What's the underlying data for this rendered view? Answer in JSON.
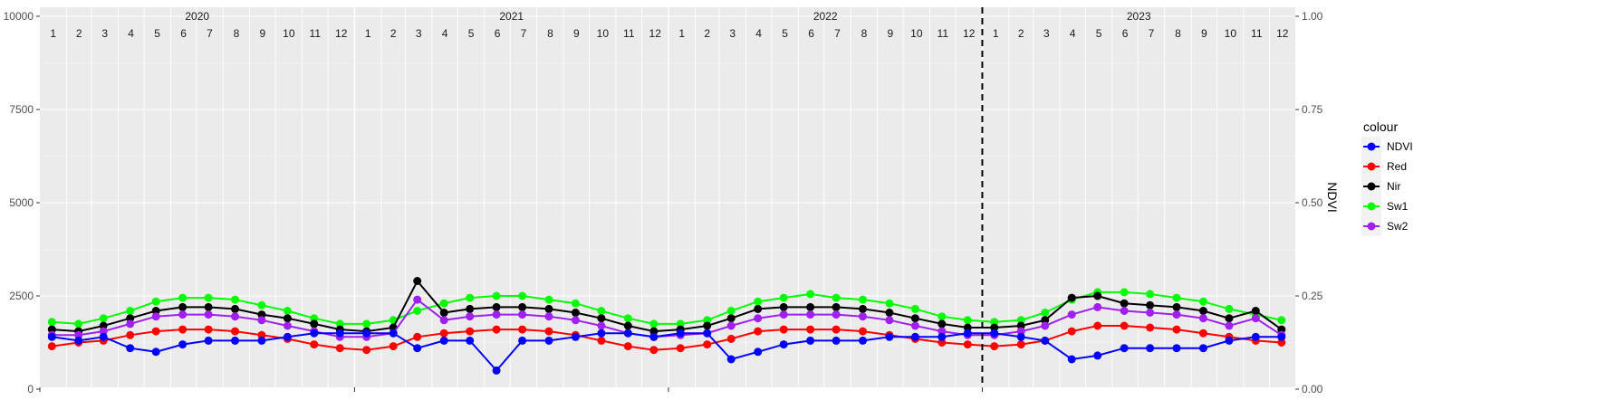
{
  "chart_data": {
    "type": "line",
    "xlabel": "",
    "ylabel_left": "",
    "ylabel_right": "NDVI",
    "ylim_left": [
      0,
      10000
    ],
    "ylim_right": [
      0.0,
      1.0
    ],
    "y_ticks_left": [
      "0",
      "2500",
      "5000",
      "7500",
      "10000"
    ],
    "y_ticks_right": [
      "0.00",
      "0.25",
      "0.50",
      "0.75",
      "1.00"
    ],
    "x_range": [
      "2020-01-01",
      "2023-12-31"
    ],
    "years": [
      "2020",
      "2021",
      "2022",
      "2023"
    ],
    "months": [
      "1",
      "2",
      "3",
      "4",
      "5",
      "6",
      "7",
      "8",
      "9",
      "10",
      "11",
      "12"
    ],
    "dashed_vline_date": "2023-01-01",
    "grid": true,
    "legend_title": "colour",
    "legend_position": "right",
    "colors": {
      "NDVI": "#0000ff",
      "Red": "#ff0000",
      "Nir": "#000000",
      "Sw1": "#00ff00",
      "Sw2": "#a020f0"
    },
    "draw_order": [
      "Sw1",
      "Nir",
      "Sw2",
      "Red",
      "NDVI"
    ],
    "series": [
      {
        "name": "NDVI",
        "axis": "right",
        "dates": [
          "2020-01-15",
          "2020-02-15",
          "2020-03-15",
          "2020-04-15",
          "2020-05-15",
          "2020-06-15",
          "2020-07-15",
          "2020-08-15",
          "2020-09-15",
          "2020-10-15",
          "2020-11-15",
          "2020-12-15",
          "2021-01-15",
          "2021-02-15",
          "2021-03-15",
          "2021-04-15",
          "2021-05-15",
          "2021-06-15",
          "2021-07-15",
          "2021-08-15",
          "2021-09-15",
          "2021-10-15",
          "2021-11-15",
          "2021-12-15",
          "2022-01-15",
          "2022-02-15",
          "2022-03-15",
          "2022-04-15",
          "2022-05-15",
          "2022-06-15",
          "2022-07-15",
          "2022-08-15",
          "2022-09-15",
          "2022-10-15",
          "2022-11-15",
          "2022-12-15",
          "2023-01-15",
          "2023-02-15",
          "2023-03-15",
          "2023-04-15",
          "2023-05-15",
          "2023-06-15",
          "2023-07-15",
          "2023-08-15",
          "2023-09-15",
          "2023-10-15",
          "2023-11-15",
          "2023-12-15"
        ],
        "values": [
          0.14,
          0.13,
          0.14,
          0.11,
          0.1,
          0.12,
          0.13,
          0.13,
          0.13,
          0.14,
          0.15,
          0.15,
          0.15,
          0.15,
          0.11,
          0.13,
          0.13,
          0.05,
          0.13,
          0.13,
          0.14,
          0.15,
          0.15,
          0.14,
          0.15,
          0.15,
          0.08,
          0.1,
          0.12,
          0.13,
          0.13,
          0.13,
          0.14,
          0.14,
          0.14,
          0.15,
          0.15,
          0.14,
          0.13,
          0.08,
          0.09,
          0.11,
          0.11,
          0.11,
          0.11,
          0.13,
          0.14,
          0.14
        ]
      },
      {
        "name": "Red",
        "axis": "left",
        "dates": [
          "2020-01-15",
          "2020-02-15",
          "2020-03-15",
          "2020-04-15",
          "2020-05-15",
          "2020-06-15",
          "2020-07-15",
          "2020-08-15",
          "2020-09-15",
          "2020-10-15",
          "2020-11-15",
          "2020-12-15",
          "2021-01-15",
          "2021-02-15",
          "2021-03-15",
          "2021-04-15",
          "2021-05-15",
          "2021-06-15",
          "2021-07-15",
          "2021-08-15",
          "2021-09-15",
          "2021-10-15",
          "2021-11-15",
          "2021-12-15",
          "2022-01-15",
          "2022-02-15",
          "2022-03-15",
          "2022-04-15",
          "2022-05-15",
          "2022-06-15",
          "2022-07-15",
          "2022-08-15",
          "2022-09-15",
          "2022-10-15",
          "2022-11-15",
          "2022-12-15",
          "2023-01-15",
          "2023-02-15",
          "2023-03-15",
          "2023-04-15",
          "2023-05-15",
          "2023-06-15",
          "2023-07-15",
          "2023-08-15",
          "2023-09-15",
          "2023-10-15",
          "2023-11-15",
          "2023-12-15"
        ],
        "values": [
          1150,
          1250,
          1300,
          1450,
          1550,
          1600,
          1600,
          1550,
          1450,
          1350,
          1200,
          1100,
          1050,
          1150,
          1400,
          1500,
          1550,
          1600,
          1600,
          1550,
          1450,
          1300,
          1150,
          1050,
          1100,
          1200,
          1350,
          1550,
          1600,
          1600,
          1600,
          1550,
          1450,
          1350,
          1250,
          1200,
          1150,
          1200,
          1300,
          1550,
          1700,
          1700,
          1650,
          1600,
          1500,
          1400,
          1300,
          1250
        ]
      },
      {
        "name": "Nir",
        "axis": "left",
        "dates": [
          "2020-01-15",
          "2020-02-15",
          "2020-03-15",
          "2020-04-15",
          "2020-05-15",
          "2020-06-15",
          "2020-07-15",
          "2020-08-15",
          "2020-09-15",
          "2020-10-15",
          "2020-11-15",
          "2020-12-15",
          "2021-01-15",
          "2021-02-15",
          "2021-03-15",
          "2021-04-15",
          "2021-05-15",
          "2021-06-15",
          "2021-07-15",
          "2021-08-15",
          "2021-09-15",
          "2021-10-15",
          "2021-11-15",
          "2021-12-15",
          "2022-01-15",
          "2022-02-15",
          "2022-03-15",
          "2022-04-15",
          "2022-05-15",
          "2022-06-15",
          "2022-07-15",
          "2022-08-15",
          "2022-09-15",
          "2022-10-15",
          "2022-11-15",
          "2022-12-15",
          "2023-01-15",
          "2023-02-15",
          "2023-03-15",
          "2023-04-15",
          "2023-05-15",
          "2023-06-15",
          "2023-07-15",
          "2023-08-15",
          "2023-09-15",
          "2023-10-15",
          "2023-11-15",
          "2023-12-15"
        ],
        "values": [
          1600,
          1550,
          1700,
          1900,
          2100,
          2200,
          2200,
          2150,
          2000,
          1900,
          1750,
          1600,
          1550,
          1650,
          2900,
          2050,
          2150,
          2200,
          2200,
          2150,
          2050,
          1900,
          1700,
          1550,
          1600,
          1700,
          1900,
          2150,
          2200,
          2200,
          2200,
          2150,
          2050,
          1900,
          1750,
          1650,
          1650,
          1700,
          1850,
          2450,
          2500,
          2300,
          2250,
          2200,
          2100,
          1900,
          2100,
          1600
        ]
      },
      {
        "name": "Sw1",
        "axis": "left",
        "dates": [
          "2020-01-15",
          "2020-02-15",
          "2020-03-15",
          "2020-04-15",
          "2020-05-15",
          "2020-06-15",
          "2020-07-15",
          "2020-08-15",
          "2020-09-15",
          "2020-10-15",
          "2020-11-15",
          "2020-12-15",
          "2021-01-15",
          "2021-02-15",
          "2021-03-15",
          "2021-04-15",
          "2021-05-15",
          "2021-06-15",
          "2021-07-15",
          "2021-08-15",
          "2021-09-15",
          "2021-10-15",
          "2021-11-15",
          "2021-12-15",
          "2022-01-15",
          "2022-02-15",
          "2022-03-15",
          "2022-04-15",
          "2022-05-15",
          "2022-06-15",
          "2022-07-15",
          "2022-08-15",
          "2022-09-15",
          "2022-10-15",
          "2022-11-15",
          "2022-12-15",
          "2023-01-15",
          "2023-02-15",
          "2023-03-15",
          "2023-04-15",
          "2023-05-15",
          "2023-06-15",
          "2023-07-15",
          "2023-08-15",
          "2023-09-15",
          "2023-10-15",
          "2023-11-15",
          "2023-12-15"
        ],
        "values": [
          1800,
          1750,
          1900,
          2100,
          2350,
          2450,
          2450,
          2400,
          2250,
          2100,
          1900,
          1750,
          1750,
          1850,
          2100,
          2300,
          2450,
          2500,
          2500,
          2400,
          2300,
          2100,
          1900,
          1750,
          1750,
          1850,
          2100,
          2350,
          2450,
          2550,
          2450,
          2400,
          2300,
          2150,
          1950,
          1850,
          1800,
          1850,
          2050,
          2400,
          2600,
          2600,
          2550,
          2450,
          2350,
          2150,
          2000,
          1850
        ]
      },
      {
        "name": "Sw2",
        "axis": "left",
        "dates": [
          "2020-01-15",
          "2020-02-15",
          "2020-03-15",
          "2020-04-15",
          "2020-05-15",
          "2020-06-15",
          "2020-07-15",
          "2020-08-15",
          "2020-09-15",
          "2020-10-15",
          "2020-11-15",
          "2020-12-15",
          "2021-01-15",
          "2021-02-15",
          "2021-03-15",
          "2021-04-15",
          "2021-05-15",
          "2021-06-15",
          "2021-07-15",
          "2021-08-15",
          "2021-09-15",
          "2021-10-15",
          "2021-11-15",
          "2021-12-15",
          "2022-01-15",
          "2022-02-15",
          "2022-03-15",
          "2022-04-15",
          "2022-05-15",
          "2022-06-15",
          "2022-07-15",
          "2022-08-15",
          "2022-09-15",
          "2022-10-15",
          "2022-11-15",
          "2022-12-15",
          "2023-01-15",
          "2023-02-15",
          "2023-03-15",
          "2023-04-15",
          "2023-05-15",
          "2023-06-15",
          "2023-07-15",
          "2023-08-15",
          "2023-09-15",
          "2023-10-15",
          "2023-11-15",
          "2023-12-15"
        ],
        "values": [
          1450,
          1450,
          1550,
          1750,
          1950,
          2000,
          2000,
          1950,
          1850,
          1700,
          1550,
          1400,
          1400,
          1500,
          2400,
          1850,
          1950,
          2000,
          2000,
          1950,
          1850,
          1700,
          1500,
          1400,
          1450,
          1500,
          1700,
          1900,
          2000,
          2000,
          2000,
          1950,
          1850,
          1700,
          1550,
          1450,
          1450,
          1550,
          1700,
          2000,
          2200,
          2100,
          2050,
          2000,
          1900,
          1700,
          1900,
          1450
        ]
      }
    ]
  }
}
